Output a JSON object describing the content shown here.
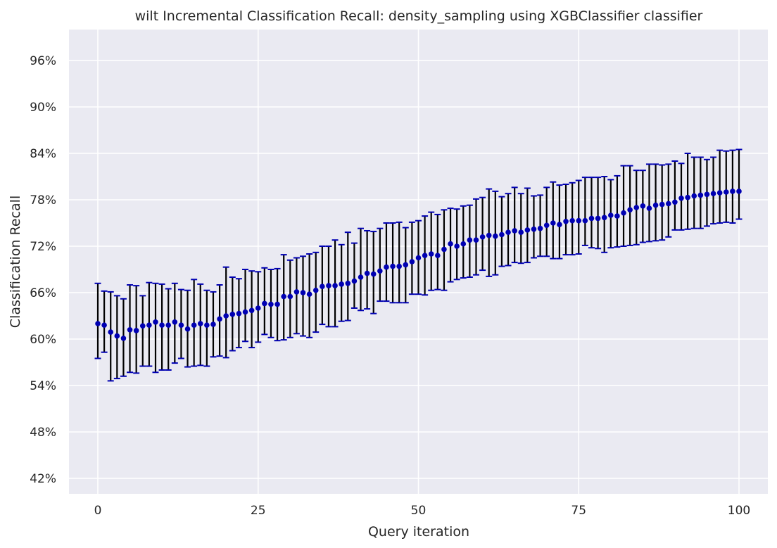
{
  "chart_data": {
    "type": "scatter",
    "title": "wilt Incremental Classification Recall: density_sampling using XGBClassifier classifier",
    "xlabel": "Query iteration",
    "ylabel": "Classification Recall",
    "xlim": [
      -4.5,
      104.5
    ],
    "ylim": [
      40,
      100
    ],
    "xticks": [
      0,
      25,
      50,
      75,
      100
    ],
    "xtick_labels": [
      "0",
      "25",
      "50",
      "75",
      "100"
    ],
    "yticks": [
      42,
      48,
      54,
      60,
      66,
      72,
      78,
      84,
      90,
      96
    ],
    "ytick_labels": [
      "42%",
      "48%",
      "54%",
      "60%",
      "66%",
      "72%",
      "78%",
      "84%",
      "90%",
      "96%"
    ],
    "grid": true,
    "colors": {
      "background": "#eaeaf2",
      "grid": "#ffffff",
      "marker": "#0000b3",
      "error_bar": "#000000",
      "error_cap": "#0000b3"
    },
    "series": [
      {
        "name": "Classification Recall",
        "x": [
          0,
          1,
          2,
          3,
          4,
          5,
          6,
          7,
          8,
          9,
          10,
          11,
          12,
          13,
          14,
          15,
          16,
          17,
          18,
          19,
          20,
          21,
          22,
          23,
          24,
          25,
          26,
          27,
          28,
          29,
          30,
          31,
          32,
          33,
          34,
          35,
          36,
          37,
          38,
          39,
          40,
          41,
          42,
          43,
          44,
          45,
          46,
          47,
          48,
          49,
          50,
          51,
          52,
          53,
          54,
          55,
          56,
          57,
          58,
          59,
          60,
          61,
          62,
          63,
          64,
          65,
          66,
          67,
          68,
          69,
          70,
          71,
          72,
          73,
          74,
          75,
          76,
          77,
          78,
          79,
          80,
          81,
          82,
          83,
          84,
          85,
          86,
          87,
          88,
          89,
          90,
          91,
          92,
          93,
          94,
          95,
          96,
          97,
          98,
          99,
          100
        ],
        "y": [
          62.0,
          61.8,
          60.9,
          60.4,
          60.1,
          61.2,
          61.1,
          61.7,
          61.8,
          62.2,
          61.8,
          61.8,
          62.2,
          61.8,
          61.3,
          61.8,
          62.0,
          61.8,
          61.9,
          62.6,
          63.0,
          63.2,
          63.3,
          63.5,
          63.7,
          64.0,
          64.6,
          64.5,
          64.5,
          65.5,
          65.5,
          66.1,
          66.0,
          65.8,
          66.3,
          66.8,
          66.9,
          66.9,
          67.1,
          67.2,
          67.5,
          68.0,
          68.5,
          68.4,
          68.8,
          69.3,
          69.4,
          69.4,
          69.6,
          70.0,
          70.5,
          70.8,
          71.0,
          70.8,
          71.6,
          72.3,
          72.0,
          72.3,
          72.8,
          72.8,
          73.2,
          73.4,
          73.3,
          73.5,
          73.8,
          74.0,
          73.8,
          74.1,
          74.2,
          74.3,
          74.7,
          75.0,
          74.8,
          75.2,
          75.3,
          75.3,
          75.3,
          75.6,
          75.6,
          75.7,
          76.0,
          75.9,
          76.3,
          76.7,
          77.0,
          77.2,
          76.9,
          77.3,
          77.4,
          77.5,
          77.7,
          78.2,
          78.3,
          78.5,
          78.6,
          78.7,
          78.8,
          78.9,
          79.0,
          79.1,
          79.1
        ],
        "err_lower": [
          57.5,
          58.3,
          54.6,
          54.9,
          55.2,
          55.7,
          55.6,
          56.5,
          56.5,
          55.7,
          56.0,
          56.0,
          56.9,
          57.5,
          56.4,
          56.5,
          56.6,
          56.5,
          57.7,
          57.8,
          57.6,
          58.5,
          58.9,
          59.7,
          58.9,
          59.6,
          60.6,
          60.2,
          59.8,
          59.9,
          60.2,
          60.7,
          60.4,
          60.2,
          60.9,
          61.9,
          61.6,
          61.6,
          62.3,
          62.4,
          64.0,
          63.7,
          63.9,
          63.3,
          64.9,
          64.9,
          64.7,
          64.7,
          64.7,
          65.8,
          65.8,
          65.7,
          66.3,
          66.4,
          66.3,
          67.4,
          67.7,
          67.9,
          68.0,
          68.3,
          68.9,
          68.1,
          68.3,
          69.4,
          69.5,
          69.9,
          69.8,
          69.9,
          70.5,
          70.7,
          70.7,
          70.4,
          70.4,
          70.9,
          70.9,
          71.0,
          72.1,
          71.8,
          71.7,
          71.2,
          71.8,
          71.9,
          72.0,
          72.1,
          72.2,
          72.5,
          72.6,
          72.7,
          72.8,
          73.2,
          74.1,
          74.1,
          74.2,
          74.3,
          74.3,
          74.6,
          74.9,
          75.0,
          75.1,
          75.0,
          75.5
        ],
        "err_upper": [
          67.2,
          66.2,
          66.1,
          65.6,
          65.2,
          67.0,
          66.9,
          65.6,
          67.3,
          67.2,
          67.1,
          66.5,
          67.2,
          66.4,
          66.3,
          67.7,
          67.1,
          66.3,
          66.1,
          67.0,
          69.3,
          68.0,
          67.8,
          69.0,
          68.8,
          68.7,
          69.2,
          69.0,
          69.1,
          70.9,
          70.2,
          70.5,
          70.7,
          71.0,
          71.2,
          72.0,
          72.0,
          72.8,
          72.2,
          73.8,
          72.4,
          74.3,
          74.0,
          73.9,
          74.3,
          75.0,
          75.0,
          75.1,
          74.4,
          75.1,
          75.3,
          75.9,
          76.4,
          76.1,
          76.7,
          76.9,
          76.8,
          77.2,
          77.3,
          78.1,
          78.3,
          79.4,
          79.1,
          78.4,
          78.8,
          79.6,
          78.8,
          79.5,
          78.5,
          78.6,
          79.6,
          80.3,
          79.9,
          80.0,
          80.2,
          80.5,
          80.9,
          80.9,
          80.9,
          81.0,
          80.6,
          81.1,
          82.4,
          82.4,
          81.8,
          81.8,
          82.6,
          82.6,
          82.5,
          82.6,
          83.0,
          82.7,
          84.0,
          83.5,
          83.5,
          83.2,
          83.5,
          84.4,
          84.3,
          84.4,
          84.5
        ]
      }
    ]
  }
}
